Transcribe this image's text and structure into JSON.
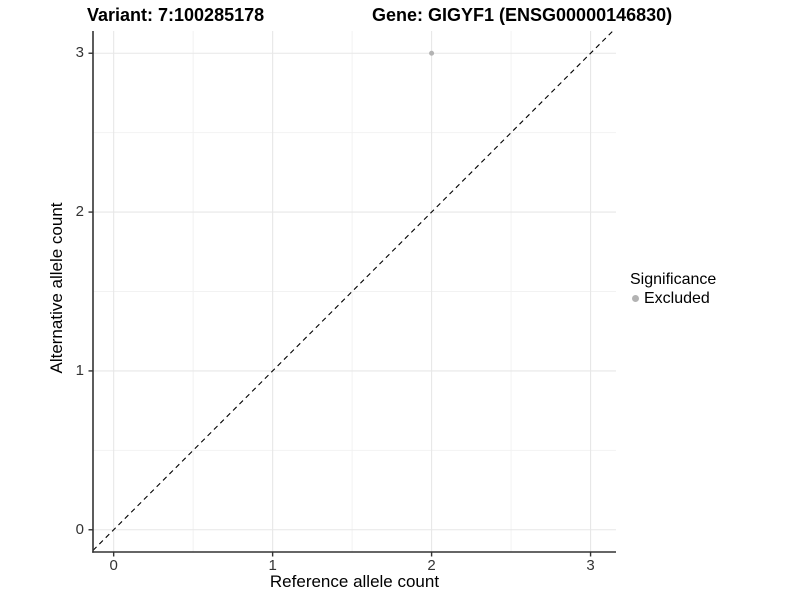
{
  "titles": {
    "variant": "Variant: 7:100285178",
    "gene": "Gene: GIGYF1 (ENSG00000146830)"
  },
  "chart_data": {
    "type": "scatter",
    "title_left": "Variant: 7:100285178",
    "title_right": "Gene: GIGYF1 (ENSG00000146830)",
    "xlabel": "Reference allele count",
    "ylabel": "Alternative allele count",
    "xlim": [
      -0.13,
      3.16
    ],
    "ylim": [
      -0.14,
      3.14
    ],
    "x_ticks": [
      "0",
      "1",
      "2",
      "3"
    ],
    "y_ticks": [
      "0",
      "1",
      "2",
      "3"
    ],
    "x_tick_values": [
      0,
      1,
      2,
      3
    ],
    "y_tick_values": [
      0,
      1,
      2,
      3
    ],
    "x_minor_tick_values": [
      0.5,
      1.5,
      2.5
    ],
    "y_minor_tick_values": [
      0.5,
      1.5,
      2.5
    ],
    "grid": true,
    "points": [
      {
        "x": 2,
        "y": 3,
        "significance": "Excluded",
        "color": "#b3b3b3"
      }
    ],
    "reference_line": {
      "slope": 1,
      "intercept": 0,
      "style": "dashed",
      "color": "#000000"
    },
    "legend": {
      "position": "right",
      "title": "Significance",
      "items": [
        {
          "label": "Excluded",
          "color": "#b3b3b3"
        }
      ]
    }
  },
  "colors": {
    "background": "#ffffff",
    "grid_major": "#e7e7e7",
    "grid_minor": "#f2f2f2",
    "axis_line": "#333333",
    "tick_mark": "#333333",
    "tick_text": "#333333",
    "point": "#b3b3b3"
  }
}
